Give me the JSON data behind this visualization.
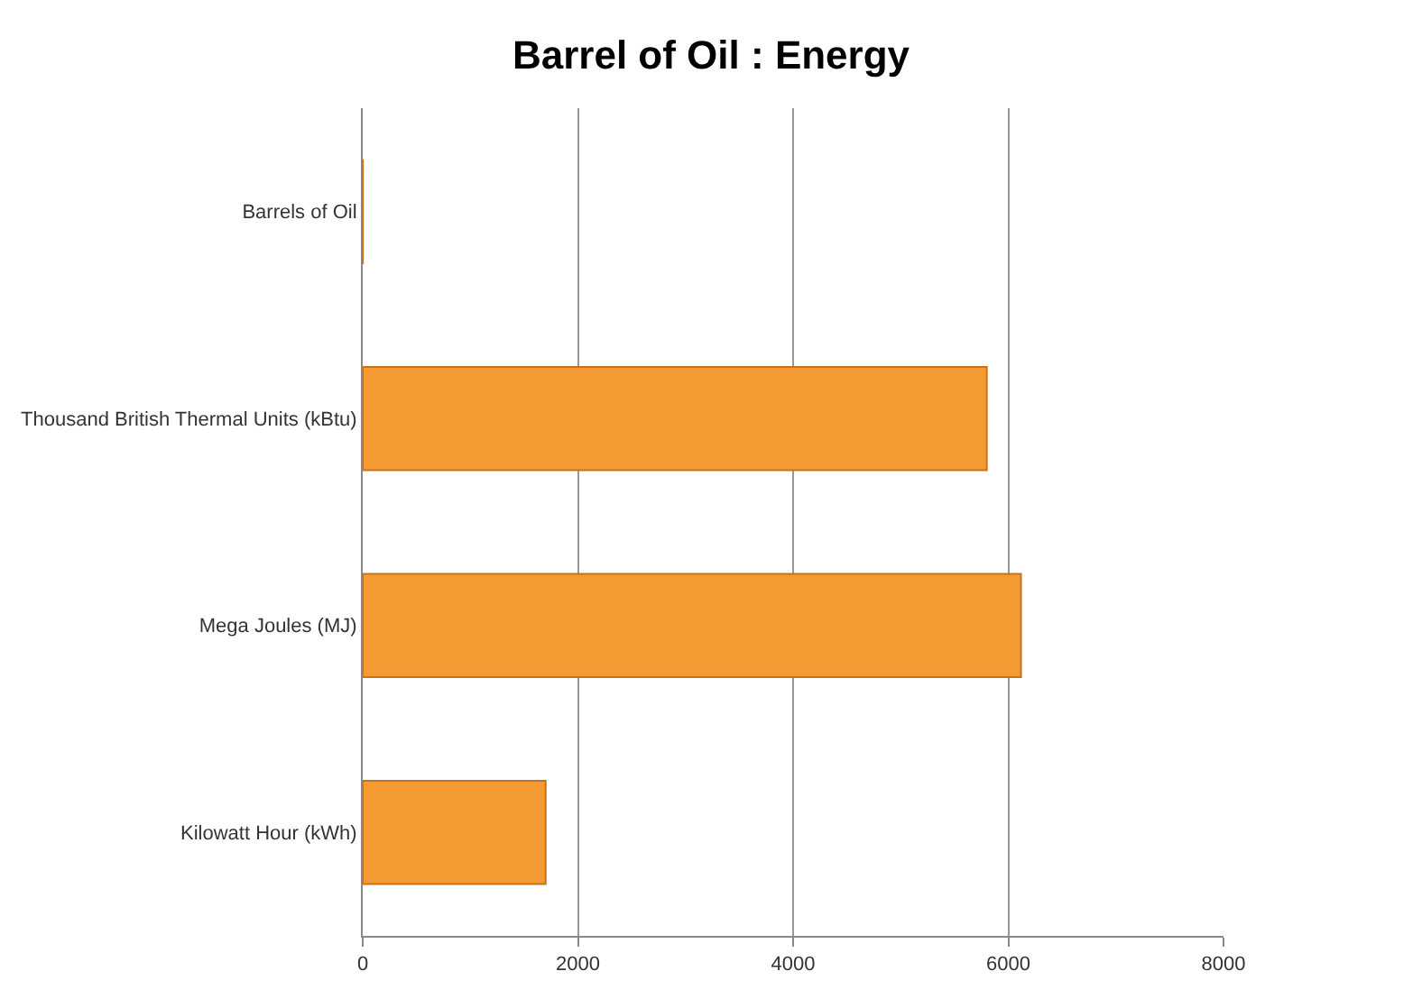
{
  "chart_data": {
    "type": "bar",
    "orientation": "horizontal",
    "title": "Barrel of Oil : Energy",
    "categories": [
      "Barrels of Oil",
      "Thousand British Thermal Units (kBtu)",
      "Mega Joules (MJ)",
      "Kilowatt Hour (kWh)"
    ],
    "values": [
      1,
      5800,
      6118,
      1700
    ],
    "color": "#f39a32",
    "xlim": [
      0,
      8000
    ],
    "xticks": [
      0,
      2000,
      4000,
      6000,
      8000
    ],
    "grid": "x",
    "legend": false
  }
}
